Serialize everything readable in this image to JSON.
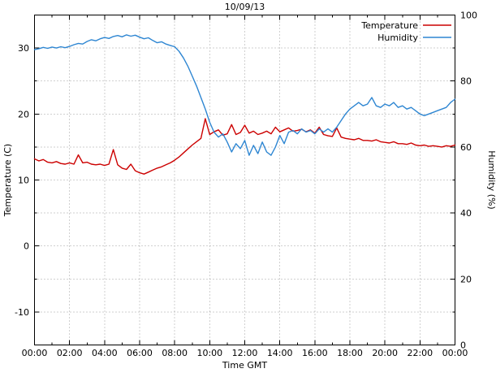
{
  "window": {
    "title": "10/09/13"
  },
  "axes": {
    "x_label": "Time GMT",
    "y_left_label": "Temperature (C)",
    "y_right_label": "Humidity (%)",
    "x_tick_labels": [
      "00:00",
      "02:00",
      "04:00",
      "06:00",
      "08:00",
      "10:00",
      "12:00",
      "14:00",
      "16:00",
      "18:00",
      "20:00",
      "22:00",
      "00:00"
    ],
    "y_left_tick_labels": [
      "-10",
      "0",
      "10",
      "20",
      "30"
    ],
    "y_right_tick_labels": [
      "0",
      "20",
      "40",
      "60",
      "80",
      "100"
    ]
  },
  "legend": {
    "position": "top-right",
    "entries": [
      {
        "label": "Temperature",
        "color": "#cc0000"
      },
      {
        "label": "Humidity",
        "color": "#2e86d2"
      }
    ]
  },
  "colors": {
    "temperature": "#cc0000",
    "humidity": "#2e86d2",
    "grid": "#a0a0a0",
    "border": "#000000",
    "background": "#ffffff"
  },
  "chart_data": {
    "type": "line",
    "title": "10/09/13",
    "xlabel": "Time GMT",
    "ylabel_left": "Temperature (C)",
    "ylabel_right": "Humidity (%)",
    "x_unit": "hours GMT",
    "x_range": [
      0,
      24
    ],
    "y_left_range": [
      -15,
      35
    ],
    "y_right_range": [
      0,
      100
    ],
    "y_left_ticks": [
      -10,
      0,
      10,
      20,
      30
    ],
    "y_right_ticks": [
      0,
      20,
      40,
      60,
      80,
      100
    ],
    "x_ticks_hours": [
      0,
      2,
      4,
      6,
      8,
      10,
      12,
      14,
      16,
      18,
      20,
      22,
      24
    ],
    "grid": true,
    "legend_position": "top-right",
    "x": [
      0,
      0.25,
      0.5,
      0.75,
      1,
      1.25,
      1.5,
      1.75,
      2,
      2.25,
      2.5,
      2.75,
      3,
      3.25,
      3.5,
      3.75,
      4,
      4.25,
      4.5,
      4.75,
      5,
      5.25,
      5.5,
      5.75,
      6,
      6.25,
      6.5,
      6.75,
      7,
      7.25,
      7.5,
      7.75,
      8,
      8.25,
      8.5,
      8.75,
      9,
      9.25,
      9.5,
      9.75,
      10,
      10.25,
      10.5,
      10.75,
      11,
      11.25,
      11.5,
      11.75,
      12,
      12.25,
      12.5,
      12.75,
      13,
      13.25,
      13.5,
      13.75,
      14,
      14.25,
      14.5,
      14.75,
      15,
      15.25,
      15.5,
      15.75,
      16,
      16.25,
      16.5,
      16.75,
      17,
      17.25,
      17.5,
      17.75,
      18,
      18.25,
      18.5,
      18.75,
      19,
      19.25,
      19.5,
      19.75,
      20,
      20.25,
      20.5,
      20.75,
      21,
      21.25,
      21.5,
      21.75,
      22,
      22.25,
      22.5,
      22.75,
      23,
      23.25,
      23.5,
      23.75,
      24
    ],
    "series": [
      {
        "name": "Temperature",
        "axis": "left",
        "unit": "C",
        "color": "#cc0000",
        "values": [
          13.2,
          12.9,
          13.1,
          12.7,
          12.6,
          12.8,
          12.5,
          12.4,
          12.6,
          12.4,
          13.8,
          12.6,
          12.7,
          12.4,
          12.3,
          12.4,
          12.2,
          12.4,
          14.6,
          12.3,
          11.8,
          11.6,
          12.4,
          11.4,
          11.1,
          10.9,
          11.2,
          11.5,
          11.8,
          12.0,
          12.3,
          12.6,
          13.0,
          13.5,
          14.1,
          14.7,
          15.3,
          15.8,
          16.3,
          19.3,
          16.9,
          17.3,
          17.6,
          16.8,
          17.0,
          18.4,
          16.9,
          17.2,
          18.3,
          17.1,
          17.4,
          16.9,
          17.1,
          17.4,
          17.0,
          18.0,
          17.3,
          17.6,
          17.9,
          17.4,
          17.5,
          17.7,
          17.3,
          17.6,
          17.1,
          18.0,
          16.9,
          16.7,
          16.6,
          17.9,
          16.5,
          16.3,
          16.2,
          16.1,
          16.3,
          16.0,
          16.0,
          15.9,
          16.1,
          15.8,
          15.7,
          15.6,
          15.8,
          15.5,
          15.5,
          15.4,
          15.6,
          15.3,
          15.2,
          15.3,
          15.1,
          15.2,
          15.1,
          15.0,
          15.2,
          15.1,
          15.3
        ]
      },
      {
        "name": "Humidity",
        "axis": "right",
        "unit": "%",
        "color": "#2e86d2",
        "values": [
          89.5,
          89.8,
          90.2,
          89.9,
          90.3,
          90.0,
          90.4,
          90.1,
          90.5,
          91.0,
          91.4,
          91.2,
          92.0,
          92.5,
          92.2,
          92.8,
          93.2,
          92.9,
          93.5,
          93.8,
          93.4,
          94.0,
          93.6,
          93.9,
          93.3,
          92.8,
          93.1,
          92.3,
          91.6,
          91.9,
          91.2,
          90.8,
          90.4,
          89.0,
          87.0,
          84.5,
          81.5,
          78.5,
          75.0,
          71.5,
          67.5,
          64.5,
          63.0,
          64.0,
          61.5,
          58.5,
          61.0,
          59.5,
          62.0,
          57.5,
          60.5,
          58.0,
          61.5,
          58.5,
          57.5,
          60.0,
          63.5,
          61.0,
          64.5,
          65.0,
          64.0,
          65.5,
          64.5,
          65.0,
          64.0,
          65.5,
          64.5,
          65.5,
          64.5,
          66.0,
          68.0,
          70.0,
          71.5,
          72.5,
          73.5,
          72.5,
          73.0,
          75.0,
          72.5,
          72.0,
          73.0,
          72.5,
          73.5,
          72.0,
          72.5,
          71.5,
          72.0,
          71.0,
          70.0,
          69.5,
          70.0,
          70.5,
          71.0,
          71.5,
          72.0,
          73.5,
          74.5
        ]
      }
    ]
  }
}
